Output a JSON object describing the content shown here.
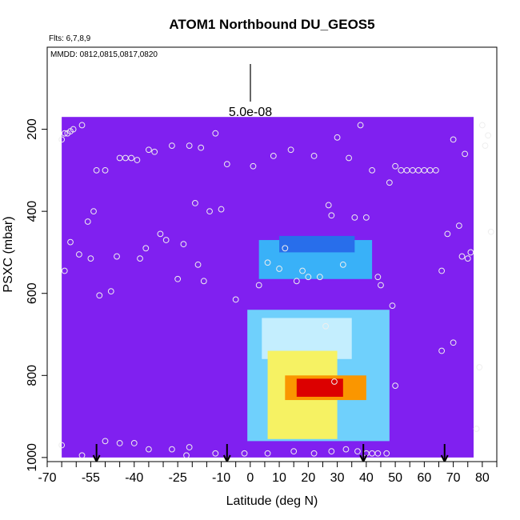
{
  "chart_data": {
    "type": "heatmap",
    "title": "ATOM1 Northbound DU_GEOS5",
    "flights_note": "Flts: 6,7,8,9",
    "dates_note": "MMDD: 0812,0815,0817,0820",
    "scale_label": "5.0e-08",
    "xlabel": "Latitude (deg N)",
    "ylabel": "PSXC (mbar)",
    "xlim": [
      -70,
      85
    ],
    "ylim": [
      1010,
      0
    ],
    "x_ticks": [
      -70,
      -55,
      -40,
      -25,
      -10,
      0,
      10,
      20,
      30,
      40,
      50,
      60,
      70,
      80
    ],
    "x_tick_labels": [
      "-70",
      "-55",
      "-40",
      "-25",
      "-10",
      "0",
      "10",
      "20",
      "30",
      "40",
      "50",
      "60",
      "70",
      "80"
    ],
    "x_minor_ticks": [
      -65,
      -60,
      -50,
      -45,
      -35,
      -30,
      -20,
      -15,
      -5,
      5,
      15,
      25,
      35,
      45,
      55,
      65,
      75,
      85
    ],
    "y_ticks": [
      200,
      400,
      600,
      800,
      1000
    ],
    "y_tick_labels": [
      "200",
      "400",
      "600",
      "800",
      "1000"
    ],
    "field_extent": {
      "x": [
        -65,
        77
      ],
      "p": [
        170,
        1000
      ]
    },
    "background_color": "#8020f0",
    "plume": [
      {
        "x": [
          3,
          42
        ],
        "p": [
          470,
          565
        ],
        "level": 0.6
      },
      {
        "x": [
          10,
          36
        ],
        "p": [
          460,
          500
        ],
        "level": 0.5
      },
      {
        "x": [
          -1,
          48
        ],
        "p": [
          640,
          960
        ],
        "level": 0.65
      },
      {
        "x": [
          4,
          35
        ],
        "p": [
          660,
          760
        ],
        "level": 0.7
      },
      {
        "x": [
          6,
          30
        ],
        "p": [
          740,
          955
        ],
        "level": 0.8
      },
      {
        "x": [
          12,
          40
        ],
        "p": [
          800,
          860
        ],
        "level": 0.9
      },
      {
        "x": [
          16,
          32
        ],
        "p": [
          808,
          852
        ],
        "level": 1.0
      }
    ],
    "arrows_lat": [
      -53,
      -8,
      39,
      67
    ],
    "sample_points": [
      {
        "x": -65,
        "y": 225
      },
      {
        "x": -64,
        "y": 210
      },
      {
        "x": -63,
        "y": 210
      },
      {
        "x": -62,
        "y": 205
      },
      {
        "x": -61,
        "y": 200
      },
      {
        "x": -58,
        "y": 190
      },
      {
        "x": -54,
        "y": 400
      },
      {
        "x": -53,
        "y": 300
      },
      {
        "x": -52,
        "y": 605
      },
      {
        "x": -50,
        "y": 300
      },
      {
        "x": -48,
        "y": 595
      },
      {
        "x": -46,
        "y": 510
      },
      {
        "x": -45,
        "y": 270
      },
      {
        "x": -43,
        "y": 270
      },
      {
        "x": -41,
        "y": 270
      },
      {
        "x": -39,
        "y": 275
      },
      {
        "x": -38,
        "y": 515
      },
      {
        "x": -36,
        "y": 490
      },
      {
        "x": -35,
        "y": 250
      },
      {
        "x": -33,
        "y": 255
      },
      {
        "x": -31,
        "y": 455
      },
      {
        "x": -29,
        "y": 470
      },
      {
        "x": -27,
        "y": 240
      },
      {
        "x": -25,
        "y": 565
      },
      {
        "x": -23,
        "y": 480
      },
      {
        "x": -21,
        "y": 240
      },
      {
        "x": -19,
        "y": 380
      },
      {
        "x": -18,
        "y": 530
      },
      {
        "x": -17,
        "y": 245
      },
      {
        "x": -16,
        "y": 570
      },
      {
        "x": -14,
        "y": 400
      },
      {
        "x": -12,
        "y": 210
      },
      {
        "x": -10,
        "y": 395
      },
      {
        "x": -8,
        "y": 285
      },
      {
        "x": -5,
        "y": 615
      },
      {
        "x": 1,
        "y": 290
      },
      {
        "x": 3,
        "y": 580
      },
      {
        "x": 6,
        "y": 525
      },
      {
        "x": 8,
        "y": 265
      },
      {
        "x": 10,
        "y": 540
      },
      {
        "x": 12,
        "y": 490
      },
      {
        "x": 14,
        "y": 250
      },
      {
        "x": 16,
        "y": 570
      },
      {
        "x": 18,
        "y": 545
      },
      {
        "x": 20,
        "y": 560
      },
      {
        "x": 22,
        "y": 265
      },
      {
        "x": 24,
        "y": 560
      },
      {
        "x": 26,
        "y": 680
      },
      {
        "x": 27,
        "y": 385
      },
      {
        "x": 28,
        "y": 410
      },
      {
        "x": 30,
        "y": 220
      },
      {
        "x": 32,
        "y": 530
      },
      {
        "x": 34,
        "y": 270
      },
      {
        "x": 36,
        "y": 415
      },
      {
        "x": 38,
        "y": 190
      },
      {
        "x": 40,
        "y": 415
      },
      {
        "x": 42,
        "y": 300
      },
      {
        "x": 44,
        "y": 560
      },
      {
        "x": 45,
        "y": 580
      },
      {
        "x": 48,
        "y": 330
      },
      {
        "x": 50,
        "y": 290
      },
      {
        "x": 52,
        "y": 300
      },
      {
        "x": 54,
        "y": 300
      },
      {
        "x": 56,
        "y": 300
      },
      {
        "x": 58,
        "y": 300
      },
      {
        "x": 60,
        "y": 300
      },
      {
        "x": 62,
        "y": 300
      },
      {
        "x": 64,
        "y": 300
      },
      {
        "x": 66,
        "y": 545
      },
      {
        "x": 68,
        "y": 455
      },
      {
        "x": 70,
        "y": 225
      },
      {
        "x": 72,
        "y": 435
      },
      {
        "x": 73,
        "y": 510
      },
      {
        "x": 74,
        "y": 260
      },
      {
        "x": 75,
        "y": 515
      },
      {
        "x": 76,
        "y": 500
      },
      {
        "x": 78,
        "y": 930
      },
      {
        "x": 79,
        "y": 780
      },
      {
        "x": 80,
        "y": 190
      },
      {
        "x": 81,
        "y": 240
      },
      {
        "x": 82,
        "y": 215
      },
      {
        "x": 83,
        "y": 450
      },
      {
        "x": 70,
        "y": 720
      },
      {
        "x": 66,
        "y": 740
      },
      {
        "x": -64,
        "y": 545
      },
      {
        "x": -62,
        "y": 475
      },
      {
        "x": -59,
        "y": 505
      },
      {
        "x": -56,
        "y": 425
      },
      {
        "x": -55,
        "y": 515
      },
      {
        "x": -65,
        "y": 970
      },
      {
        "x": -58,
        "y": 995
      },
      {
        "x": -50,
        "y": 960
      },
      {
        "x": -45,
        "y": 965
      },
      {
        "x": -40,
        "y": 965
      },
      {
        "x": -35,
        "y": 980
      },
      {
        "x": -27,
        "y": 980
      },
      {
        "x": -22,
        "y": 995
      },
      {
        "x": -21,
        "y": 975
      },
      {
        "x": -12,
        "y": 990
      },
      {
        "x": -2,
        "y": 990
      },
      {
        "x": 6,
        "y": 990
      },
      {
        "x": 15,
        "y": 985
      },
      {
        "x": 22,
        "y": 990
      },
      {
        "x": 28,
        "y": 985
      },
      {
        "x": 33,
        "y": 980
      },
      {
        "x": 37,
        "y": 985
      },
      {
        "x": 40,
        "y": 990
      },
      {
        "x": 42,
        "y": 990
      },
      {
        "x": 44,
        "y": 990
      },
      {
        "x": 47,
        "y": 990
      },
      {
        "x": 29,
        "y": 815
      },
      {
        "x": 50,
        "y": 825
      },
      {
        "x": 49,
        "y": 630
      }
    ]
  }
}
